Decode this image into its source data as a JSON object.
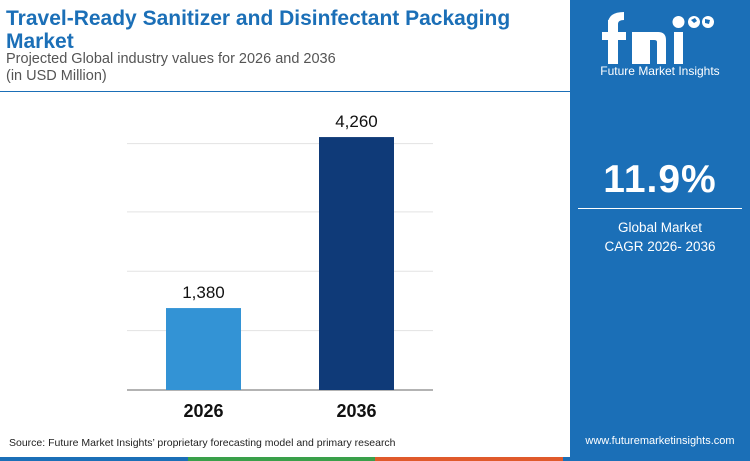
{
  "header": {
    "title": "Travel-Ready Sanitizer and Disinfectant Packaging Market",
    "subtitle_line1": "Projected Global industry values for 2026 and 2036",
    "subtitle_line2": "(in USD Million)"
  },
  "chart_data": {
    "type": "bar",
    "categories": [
      "2026",
      "2036"
    ],
    "values": [
      1380,
      4260
    ],
    "value_labels": [
      "1,380",
      "4,260"
    ],
    "colors": [
      "#3393d5",
      "#0f3a78"
    ],
    "ylim": [
      0,
      4800
    ],
    "grid": true,
    "title": "",
    "xlabel": "",
    "ylabel": ""
  },
  "source": "Source: Future Market Insights’ proprietary forecasting model and primary research",
  "sidebar": {
    "brand": "Future Market Insights",
    "cagr_value": "11.9%",
    "cagr_line1": "Global Market",
    "cagr_line2": "CAGR 2026- 2036",
    "website": "www.futuremarketinsights.com"
  },
  "colors": {
    "brand_blue": "#1b6fb7",
    "footer_stripe": [
      "#1b6fb7",
      "#3aa04a",
      "#e05a2b",
      "#1b6fb7"
    ]
  }
}
